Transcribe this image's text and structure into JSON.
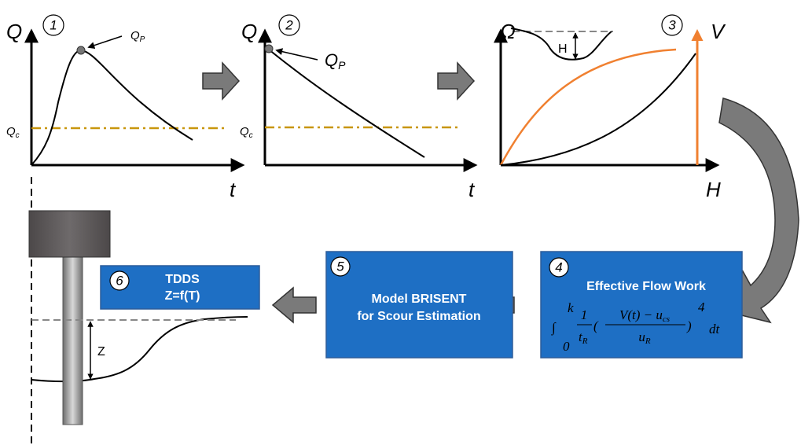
{
  "panels": [
    {
      "number": "1",
      "y_label": "Q",
      "x_label": "t",
      "peak_label": {
        "main": "Q",
        "sub": "P"
      },
      "threshold_label": {
        "main": "Q",
        "sub": "c"
      }
    },
    {
      "number": "2",
      "y_label": "Q",
      "x_label": "t",
      "peak_label": {
        "main": "Q",
        "sub": "P"
      },
      "threshold_label": {
        "main": "Q",
        "sub": "c"
      }
    },
    {
      "number": "3",
      "y_label": "Ω",
      "y2_label": "V",
      "x_label": "H",
      "section_label": "H"
    }
  ],
  "boxes": [
    {
      "number": "4",
      "title": "Effective Flow Work",
      "formula": {
        "integral": "∫",
        "upper": "k",
        "lower": "0",
        "coef_num": "1",
        "coef_den": {
          "main": "t",
          "sub": "R"
        },
        "open": "(",
        "num": {
          "main": "V(t) − u",
          "sub": "cs"
        },
        "den": {
          "main": "u",
          "sub": "R"
        },
        "close": ")",
        "power": "4",
        "differential": "dt"
      }
    },
    {
      "number": "5",
      "lines": [
        "Model BRISENT",
        "for Scour Estimation"
      ]
    },
    {
      "number": "6",
      "lines": [
        "TDDS",
        "Z=f(T)"
      ],
      "depth_label": "Z"
    }
  ]
}
